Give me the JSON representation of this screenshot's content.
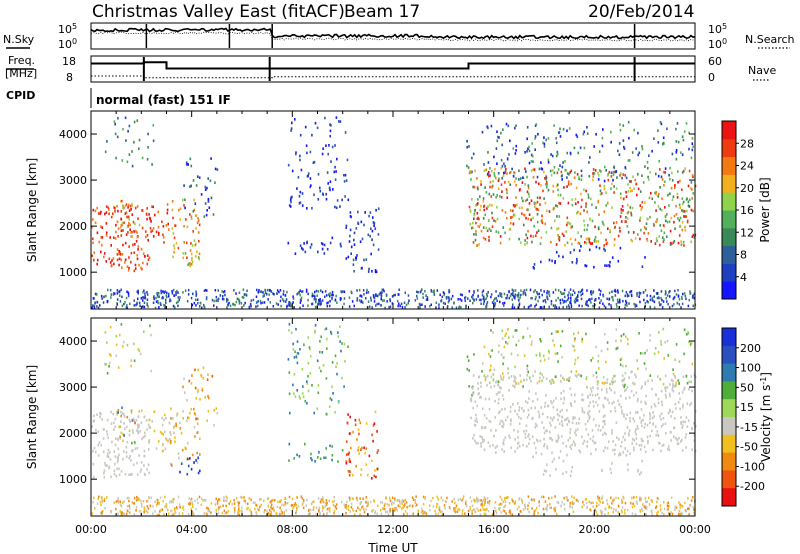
{
  "header": {
    "title": "Christmas Valley East (fitACF)",
    "beam": "Beam 17",
    "date": "20/Feb/2014"
  },
  "status": {
    "nsky_label": "N.Sky",
    "nsearch_label": "N.Search",
    "freq_label_1": "Freq.",
    "freq_label_2": "[MHz]",
    "nave_label": "Nave",
    "cpid_label": "CPID",
    "noise_ticks_left": [
      "10^5",
      "10^0"
    ],
    "noise_ticks_right": [
      "10^5",
      "10^0"
    ],
    "freq_ticks": [
      "18",
      "8"
    ],
    "nave_ticks": [
      "60",
      "0"
    ],
    "mode_text": "normal (fast) 151 IF"
  },
  "chart_data": [
    {
      "type": "heatmap",
      "name": "power",
      "ylabel": "Slant Range [km]",
      "yticks": [
        1000,
        2000,
        3000,
        4000
      ],
      "ylim": [
        200,
        4500
      ],
      "colorbar": {
        "label": "Power [dB]",
        "ticks": [
          4,
          8,
          12,
          16,
          20,
          24,
          28
        ],
        "colors": [
          "#1515ff",
          "#1e3fc0",
          "#2f5f9a",
          "#3a8a58",
          "#52b05b",
          "#8fd34a",
          "#f2b020",
          "#f37a12",
          "#ef3b10",
          "#ea1212"
        ]
      }
    },
    {
      "type": "heatmap",
      "name": "velocity",
      "ylabel": "Slant Range [km]",
      "yticks": [
        1000,
        2000,
        3000,
        4000
      ],
      "ylim": [
        200,
        4500
      ],
      "xlabel": "Time UT",
      "xticks": [
        "00:00",
        "04:00",
        "08:00",
        "12:00",
        "16:00",
        "20:00",
        "00:00"
      ],
      "xlim_hours": [
        0,
        24
      ],
      "colorbar": {
        "label": "Velocity [m s^-1]",
        "ticks": [
          "200",
          "100",
          "50",
          "15",
          "-15",
          "-50",
          "-100",
          "-200"
        ],
        "colors": [
          "#1a2fd8",
          "#2a4fc0",
          "#2f7ab0",
          "#4fae3a",
          "#9ed85a",
          "#c8c8c0",
          "#f0c020",
          "#f08a10",
          "#f05510",
          "#e81010"
        ]
      }
    }
  ]
}
